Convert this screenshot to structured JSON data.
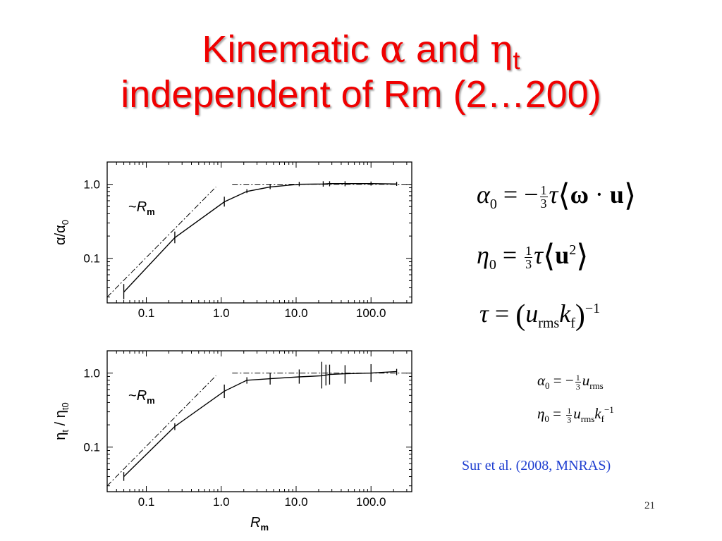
{
  "slide": {
    "title_line1_prefix": "Kinematic ",
    "title_alpha": "α",
    "title_and": " and ",
    "title_eta": "η",
    "title_eta_sub": "t",
    "title_line2": "independent of Rm (2…200)",
    "citation": "Sur et al. (2008, MNRAS)",
    "slide_number": "21"
  },
  "formulas": {
    "alpha0_lhs": "α",
    "alpha0_sub": "0",
    "alpha0_eq": " = −",
    "alpha0_num": "1",
    "alpha0_den": "3",
    "alpha0_tau": "τ",
    "alpha0_omega": "ω",
    "alpha0_dot": " · ",
    "alpha0_u": "u",
    "eta0_lhs": "η",
    "eta0_sub": "0",
    "eta0_eq": " = ",
    "eta0_num": "1",
    "eta0_den": "3",
    "eta0_tau": "τ",
    "eta0_u": "u",
    "eta0_sup": "2",
    "tau_lhs": "τ",
    "tau_eq": " = ",
    "tau_u": "u",
    "tau_u_sub": "rms",
    "tau_k": "k",
    "tau_k_sub": "f",
    "tau_sup": "−1",
    "s_alpha_lhs": "α",
    "s_alpha_sub": "0",
    "s_alpha_eq": " = −",
    "s_alpha_num": "1",
    "s_alpha_den": "3",
    "s_alpha_u": "u",
    "s_alpha_u_sub": "rms",
    "s_eta_lhs": "η",
    "s_eta_sub": "0",
    "s_eta_eq": " = ",
    "s_eta_num": "1",
    "s_eta_den": "3",
    "s_eta_u": "u",
    "s_eta_u_sub": "rms",
    "s_eta_k": "k",
    "s_eta_k_sub": "f",
    "s_eta_sup": "−1"
  },
  "chart_data": [
    {
      "type": "line",
      "xscale": "log",
      "yscale": "log",
      "xlim": [
        0.03,
        350
      ],
      "ylim": [
        0.025,
        2.0
      ],
      "xticks": [
        0.1,
        1.0,
        10.0,
        100.0
      ],
      "xtick_labels": [
        "0.1",
        "1.0",
        "10.0",
        "100.0"
      ],
      "yticks": [
        0.1,
        1.0
      ],
      "ytick_labels": [
        "0.1",
        "1.0"
      ],
      "ylabel": "α/α",
      "ylabel_sub": "0",
      "xlabel": "",
      "xlabel_sub": "",
      "annotation": "~R",
      "annotation_sub": "m",
      "series": [
        {
          "x": [
            0.05,
            0.24,
            1.1,
            2.2,
            4.5,
            11,
            23,
            28,
            45,
            100,
            220
          ],
          "y": [
            0.035,
            0.19,
            0.58,
            0.8,
            0.92,
            1.0,
            1.01,
            1.02,
            1.02,
            1.02,
            1.01
          ],
          "yerr_low": [
            0.028,
            0.16,
            0.5,
            0.76,
            0.86,
            0.94,
            0.93,
            0.94,
            0.94,
            0.96,
            0.95
          ],
          "yerr_high": [
            0.045,
            0.23,
            0.68,
            0.86,
            1.0,
            1.08,
            1.1,
            1.1,
            1.1,
            1.09,
            1.08
          ]
        }
      ],
      "reference_lines": [
        {
          "x": [
            0.03,
            0.85
          ],
          "y": [
            0.03,
            0.92
          ]
        },
        {
          "x": [
            1.4,
            350
          ],
          "y": [
            1.0,
            1.0
          ]
        }
      ]
    },
    {
      "type": "line",
      "xscale": "log",
      "yscale": "log",
      "xlim": [
        0.03,
        350
      ],
      "ylim": [
        0.025,
        2.0
      ],
      "xticks": [
        0.1,
        1.0,
        10.0,
        100.0
      ],
      "xtick_labels": [
        "0.1",
        "1.0",
        "10.0",
        "100.0"
      ],
      "yticks": [
        0.1,
        1.0
      ],
      "ytick_labels": [
        "0.1",
        "1.0"
      ],
      "ylabel": "η",
      "ylabel_sub": "t",
      "ylabel_mid": " / η",
      "ylabel_sub2": "t0",
      "xlabel": "R",
      "xlabel_sub": "m",
      "annotation": "~R",
      "annotation_sub": "m",
      "series": [
        {
          "x": [
            0.05,
            0.24,
            1.1,
            2.2,
            4.5,
            11,
            22,
            25,
            28,
            45,
            100,
            220
          ],
          "y": [
            0.04,
            0.19,
            0.57,
            0.8,
            0.84,
            0.89,
            0.92,
            0.94,
            0.96,
            0.98,
            1.0,
            1.05
          ],
          "yerr_low": [
            0.035,
            0.17,
            0.46,
            0.72,
            0.7,
            0.72,
            0.62,
            0.68,
            0.7,
            0.72,
            0.76,
            0.94
          ],
          "yerr_high": [
            0.046,
            0.21,
            0.7,
            0.88,
            1.0,
            1.12,
            1.42,
            1.3,
            1.3,
            1.28,
            1.32,
            1.14
          ]
        }
      ],
      "reference_lines": [
        {
          "x": [
            0.03,
            0.85
          ],
          "y": [
            0.03,
            0.92
          ]
        },
        {
          "x": [
            1.4,
            350
          ],
          "y": [
            1.0,
            1.0
          ]
        }
      ]
    }
  ]
}
